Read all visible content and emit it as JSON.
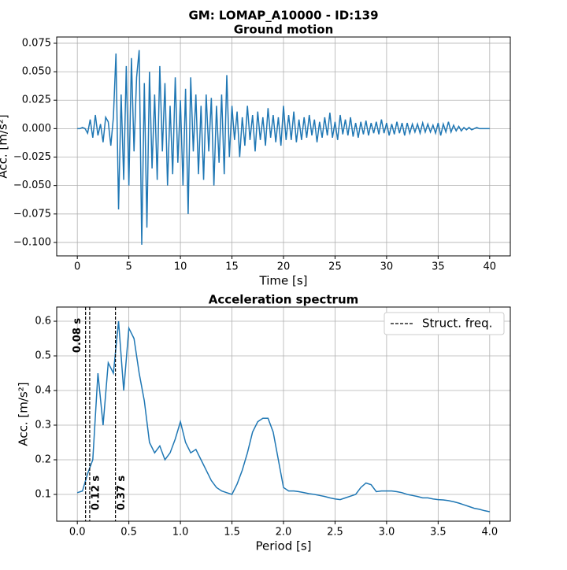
{
  "suptitle": "GM: LOMAP_A10000 - ID:139",
  "chart_data": [
    {
      "type": "line",
      "title": "Ground motion",
      "x_label": "Time [s]",
      "y_label": "Acc. [m/s²]",
      "grid": true,
      "xlim": [
        -2,
        42
      ],
      "ylim": [
        -0.1118,
        0.0805
      ],
      "xticks": [
        0,
        5,
        10,
        15,
        20,
        25,
        30,
        35,
        40
      ],
      "yticks": [
        {
          "value": -0.1,
          "label": "−0.100"
        },
        {
          "value": -0.075,
          "label": "−0.075"
        },
        {
          "value": -0.05,
          "label": "−0.050"
        },
        {
          "value": -0.025,
          "label": "−0.025"
        },
        {
          "value": 0,
          "label": "0.000"
        },
        {
          "value": 0.025,
          "label": "0.025"
        },
        {
          "value": 0.05,
          "label": "0.050"
        },
        {
          "value": 0.075,
          "label": "0.075"
        }
      ],
      "x": [
        0,
        0.25,
        0.5,
        0.75,
        1,
        1.25,
        1.5,
        1.75,
        2,
        2.25,
        2.5,
        2.75,
        3,
        3.25,
        3.5,
        3.75,
        4,
        4.25,
        4.5,
        4.75,
        5,
        5.25,
        5.5,
        5.75,
        6,
        6.25,
        6.5,
        6.75,
        7,
        7.25,
        7.5,
        7.75,
        8,
        8.25,
        8.5,
        8.75,
        9,
        9.25,
        9.5,
        9.75,
        10,
        10.25,
        10.5,
        10.75,
        11,
        11.25,
        11.5,
        11.75,
        12,
        12.25,
        12.5,
        12.75,
        13,
        13.25,
        13.5,
        13.75,
        14,
        14.25,
        14.5,
        14.75,
        15,
        15.25,
        15.5,
        15.75,
        16,
        16.25,
        16.5,
        16.75,
        17,
        17.25,
        17.5,
        17.75,
        18,
        18.25,
        18.5,
        18.75,
        19,
        19.25,
        19.5,
        19.75,
        20,
        20.25,
        20.5,
        20.75,
        21,
        21.25,
        21.5,
        21.75,
        22,
        22.25,
        22.5,
        22.75,
        23,
        23.25,
        23.5,
        23.75,
        24,
        24.25,
        24.5,
        24.75,
        25,
        25.25,
        25.5,
        25.75,
        26,
        26.25,
        26.5,
        26.75,
        27,
        27.25,
        27.5,
        27.75,
        28,
        28.25,
        28.5,
        28.75,
        29,
        29.25,
        29.5,
        29.75,
        30,
        30.25,
        30.5,
        30.75,
        31,
        31.25,
        31.5,
        31.75,
        32,
        32.25,
        32.5,
        32.75,
        33,
        33.25,
        33.5,
        33.75,
        34,
        34.25,
        34.5,
        34.75,
        35,
        35.25,
        35.5,
        35.75,
        36,
        36.25,
        36.5,
        36.75,
        37,
        37.25,
        37.5,
        37.75,
        38,
        38.25,
        38.5,
        38.75,
        39,
        39.25,
        39.5,
        39.75,
        40
      ],
      "series": [
        {
          "color": "#1f77b4",
          "values": [
            0,
            0,
            0.001,
            0,
            -0.004,
            0.008,
            -0.008,
            0.012,
            -0.006,
            0.004,
            -0.012,
            0.01,
            0.006,
            -0.015,
            0.01,
            0.066,
            -0.071,
            0.03,
            -0.045,
            0.055,
            -0.05,
            0.062,
            -0.02,
            0.045,
            0.069,
            -0.102,
            0.04,
            -0.087,
            0.05,
            -0.035,
            0.03,
            -0.045,
            0.055,
            -0.02,
            0.04,
            -0.05,
            0.02,
            -0.04,
            0.045,
            -0.03,
            0.025,
            -0.05,
            0.035,
            -0.075,
            0.045,
            -0.02,
            0.03,
            -0.04,
            0.02,
            -0.045,
            0.03,
            -0.02,
            0.027,
            -0.05,
            0.02,
            -0.03,
            0.03,
            -0.04,
            0.047,
            -0.025,
            0.02,
            -0.01,
            0.015,
            -0.025,
            0.01,
            -0.015,
            0.02,
            -0.01,
            0.012,
            -0.02,
            0.015,
            -0.01,
            0.01,
            -0.015,
            0.018,
            -0.008,
            0.012,
            -0.012,
            0.01,
            -0.015,
            0.02,
            -0.01,
            0.012,
            -0.01,
            0.015,
            -0.012,
            0.008,
            -0.01,
            0.01,
            -0.008,
            0.012,
            -0.006,
            0.008,
            -0.012,
            0.006,
            -0.008,
            0.01,
            -0.006,
            0.014,
            -0.008,
            0.006,
            -0.01,
            0.012,
            -0.005,
            0.008,
            -0.006,
            0.01,
            -0.007,
            0.005,
            -0.008,
            0.006,
            -0.005,
            0.007,
            -0.006,
            0.005,
            -0.004,
            0.006,
            -0.005,
            0.008,
            -0.004,
            0.005,
            -0.006,
            0.004,
            -0.005,
            0.006,
            -0.004,
            0.005,
            -0.006,
            0.005,
            -0.004,
            0.004,
            -0.003,
            0.004,
            -0.004,
            0.005,
            -0.003,
            0.004,
            -0.003,
            0.003,
            -0.004,
            0.005,
            -0.006,
            0.004,
            -0.003,
            0.006,
            -0.003,
            0.003,
            -0.002,
            0.002,
            -0.002,
            0.001,
            -0.001,
            0.001,
            -0.001,
            0,
            0.001,
            0,
            0,
            0,
            0,
            0
          ]
        }
      ]
    },
    {
      "type": "line",
      "title": "Acceleration spectrum",
      "x_label": "Period [s]",
      "y_label": "Acc. [m/s²]",
      "grid": true,
      "xlim": [
        -0.2,
        4.2
      ],
      "ylim": [
        0.0227,
        0.641
      ],
      "xticks": [
        {
          "value": 0,
          "label": "0.0"
        },
        {
          "value": 0.5,
          "label": "0.5"
        },
        {
          "value": 1,
          "label": "1.0"
        },
        {
          "value": 1.5,
          "label": "1.5"
        },
        {
          "value": 2,
          "label": "2.0"
        },
        {
          "value": 2.5,
          "label": "2.5"
        },
        {
          "value": 3,
          "label": "3.0"
        },
        {
          "value": 3.5,
          "label": "3.5"
        },
        {
          "value": 4,
          "label": "4.0"
        }
      ],
      "yticks": [
        0.1,
        0.2,
        0.3,
        0.4,
        0.5,
        0.6
      ],
      "x": [
        0,
        0.05,
        0.1,
        0.15,
        0.2,
        0.25,
        0.3,
        0.35,
        0.4,
        0.45,
        0.5,
        0.55,
        0.6,
        0.65,
        0.7,
        0.75,
        0.8,
        0.85,
        0.9,
        0.95,
        1,
        1.05,
        1.1,
        1.15,
        1.2,
        1.25,
        1.3,
        1.35,
        1.4,
        1.45,
        1.5,
        1.55,
        1.6,
        1.65,
        1.7,
        1.75,
        1.8,
        1.85,
        1.9,
        1.95,
        2,
        2.05,
        2.1,
        2.15,
        2.2,
        2.25,
        2.3,
        2.35,
        2.4,
        2.45,
        2.5,
        2.55,
        2.6,
        2.65,
        2.7,
        2.75,
        2.8,
        2.85,
        2.9,
        2.95,
        3,
        3.05,
        3.1,
        3.15,
        3.2,
        3.25,
        3.3,
        3.35,
        3.4,
        3.45,
        3.5,
        3.55,
        3.6,
        3.65,
        3.7,
        3.75,
        3.8,
        3.85,
        3.9,
        3.95,
        4
      ],
      "series": [
        {
          "color": "#1f77b4",
          "values": [
            0.105,
            0.11,
            0.16,
            0.2,
            0.45,
            0.3,
            0.48,
            0.45,
            0.6,
            0.4,
            0.58,
            0.55,
            0.45,
            0.37,
            0.25,
            0.22,
            0.24,
            0.2,
            0.22,
            0.26,
            0.31,
            0.25,
            0.22,
            0.23,
            0.2,
            0.17,
            0.14,
            0.12,
            0.11,
            0.105,
            0.1,
            0.13,
            0.17,
            0.22,
            0.28,
            0.31,
            0.32,
            0.32,
            0.28,
            0.2,
            0.12,
            0.11,
            0.11,
            0.108,
            0.105,
            0.102,
            0.1,
            0.097,
            0.094,
            0.09,
            0.087,
            0.085,
            0.09,
            0.095,
            0.1,
            0.12,
            0.133,
            0.128,
            0.108,
            0.11,
            0.11,
            0.11,
            0.108,
            0.105,
            0.1,
            0.097,
            0.094,
            0.09,
            0.09,
            0.087,
            0.085,
            0.084,
            0.082,
            0.079,
            0.075,
            0.07,
            0.065,
            0.06,
            0.057,
            0.053,
            0.05
          ]
        }
      ],
      "vlines": [
        {
          "value": 0.08,
          "label": "0.08 s"
        },
        {
          "value": 0.12,
          "label": "0.12 s"
        },
        {
          "value": 0.37,
          "label": "0.37 s"
        }
      ],
      "legend": {
        "label": "Struct. freq.",
        "loc": "upper right"
      }
    }
  ]
}
